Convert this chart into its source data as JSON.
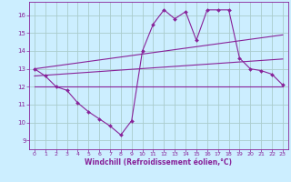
{
  "background_color": "#cceeff",
  "grid_color": "#aacccc",
  "line_color": "#882299",
  "marker_color": "#882299",
  "xlabel": "Windchill (Refroidissement éolien,°C)",
  "xlim": [
    -0.5,
    23.5
  ],
  "ylim": [
    8.5,
    16.75
  ],
  "yticks": [
    9,
    10,
    11,
    12,
    13,
    14,
    15,
    16
  ],
  "xticks": [
    0,
    1,
    2,
    3,
    4,
    5,
    6,
    7,
    8,
    9,
    10,
    11,
    12,
    13,
    14,
    15,
    16,
    17,
    18,
    19,
    20,
    21,
    22,
    23
  ],
  "series": [
    {
      "x": [
        0,
        1,
        2,
        3,
        4,
        5,
        6,
        7,
        8,
        9,
        10,
        11,
        12,
        13,
        14,
        15,
        16,
        17,
        18,
        19,
        20,
        21,
        22,
        23
      ],
      "y": [
        13.0,
        12.6,
        12.0,
        11.8,
        11.1,
        10.6,
        10.2,
        9.8,
        9.3,
        10.1,
        14.0,
        15.5,
        16.3,
        15.8,
        16.2,
        14.6,
        16.3,
        16.3,
        16.3,
        13.6,
        13.0,
        12.9,
        12.7,
        12.1
      ],
      "markers": true
    },
    {
      "x": [
        0,
        23
      ],
      "y": [
        13.0,
        14.9
      ],
      "markers": false
    },
    {
      "x": [
        0,
        23
      ],
      "y": [
        12.6,
        13.55
      ],
      "markers": false
    },
    {
      "x": [
        0,
        23
      ],
      "y": [
        12.0,
        12.0
      ],
      "markers": false
    }
  ]
}
